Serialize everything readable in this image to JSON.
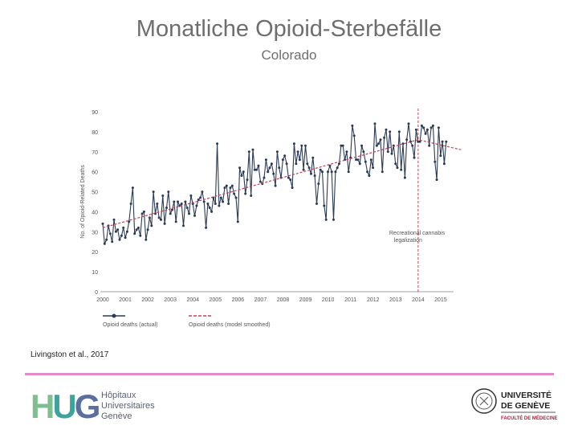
{
  "header": {
    "title": "Monatliche Opioid-Sterbefälle",
    "subtitle": "Colorado"
  },
  "citation": "Livingston et al., 2017",
  "colors": {
    "actual": "#2b3a55",
    "smoothed": "#c94050",
    "marker_line": "#c94050",
    "rule": "#e28bc6",
    "hug_green": "#7fbf8f",
    "hug_teal": "#3ea39a",
    "hug_blue": "#5a6fa0"
  },
  "logos": {
    "hug": {
      "letters": "HUG",
      "lines": [
        "Hôpitaux",
        "Universitaires",
        "Genève"
      ]
    },
    "unige": {
      "lines": [
        "UNIVERSITÉ",
        "DE GENÈVE"
      ],
      "faculty": "FACULTÉ DE MÉDECINE"
    }
  },
  "chart_data": {
    "type": "line",
    "ylabel": "No. of Opioid-Related Deaths",
    "xlabel": "",
    "ylim": [
      0,
      90
    ],
    "yticks": [
      0,
      10,
      20,
      30,
      40,
      50,
      60,
      70,
      80,
      90
    ],
    "xlim": [
      2000,
      2016
    ],
    "xticks": [
      "2000",
      "2001",
      "2002",
      "2003",
      "2004",
      "2005",
      "2006",
      "2007",
      "2008",
      "2009",
      "2010",
      "2011",
      "2012",
      "2013",
      "2014",
      "2015"
    ],
    "grid": false,
    "legend": {
      "placement": "bottom-left",
      "entries": [
        "Opioid deaths (actual)",
        "Opioid deaths (model smoothed)"
      ]
    },
    "annotation": {
      "x": 2014.0,
      "lines": [
        "Recreational cannabis",
        "legalization"
      ]
    },
    "series": [
      {
        "name": "Opioid deaths (actual)",
        "style": "line-markers",
        "x_start": 2000.0,
        "step": 0.0833,
        "values": [
          34,
          24,
          26,
          33,
          29,
          25,
          36,
          30,
          31,
          26,
          28,
          32,
          27,
          30,
          35,
          44,
          52,
          29,
          31,
          32,
          28,
          39,
          40,
          26,
          31,
          37,
          33,
          50,
          39,
          44,
          37,
          36,
          48,
          34,
          42,
          50,
          39,
          41,
          45,
          35,
          45,
          43,
          44,
          33,
          45,
          42,
          39,
          48,
          44,
          38,
          43,
          46,
          47,
          50,
          45,
          32,
          44,
          42,
          40,
          47,
          44,
          74,
          43,
          47,
          45,
          52,
          53,
          44,
          52,
          53,
          49,
          47,
          35,
          62,
          58,
          60,
          49,
          56,
          70,
          48,
          71,
          61,
          61,
          63,
          55,
          54,
          57,
          66,
          60,
          62,
          64,
          59,
          53,
          70,
          62,
          57,
          66,
          68,
          64,
          57,
          56,
          52,
          74,
          64,
          70,
          66,
          73,
          61,
          73,
          64,
          62,
          59,
          67,
          58,
          44,
          54,
          61,
          60,
          43,
          36,
          60,
          63,
          60,
          36,
          60,
          62,
          64,
          73,
          73,
          66,
          70,
          60,
          67,
          83,
          78,
          66,
          66,
          64,
          73,
          70,
          65,
          60,
          58,
          66,
          62,
          84,
          73,
          74,
          76,
          60,
          77,
          81,
          70,
          80,
          69,
          73,
          64,
          62,
          80,
          61,
          74,
          57,
          76,
          84,
          75,
          73,
          67,
          81,
          75,
          75,
          83,
          82,
          79,
          81,
          73,
          82,
          83,
          65,
          56,
          82,
          68,
          75,
          64,
          75
        ]
      },
      {
        "name": "Opioid deaths (model smoothed)",
        "style": "dashed",
        "x": [
          2000.0,
          2014.0,
          2015.9
        ],
        "values": [
          32,
          76,
          71
        ]
      }
    ]
  }
}
